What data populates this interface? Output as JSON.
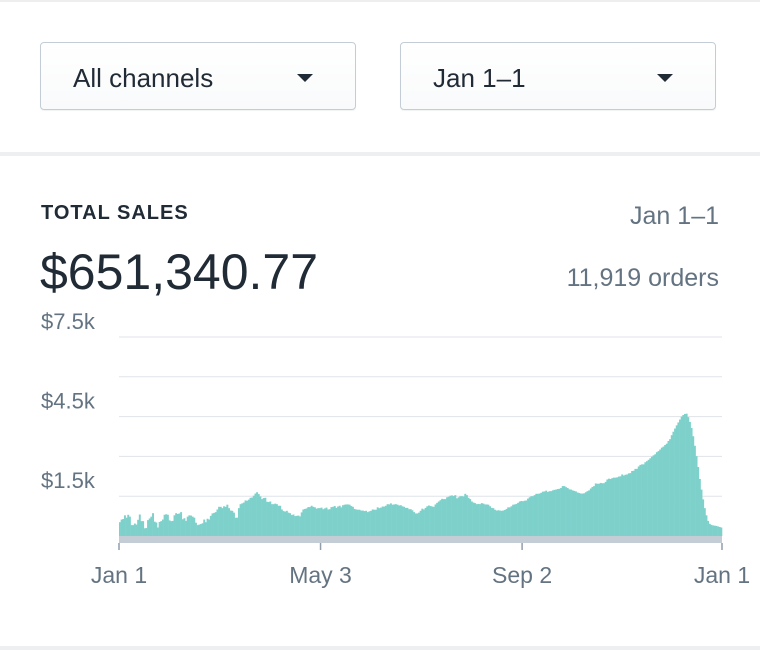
{
  "filters": {
    "channel": {
      "value": "All channels",
      "icon": "caret-down-icon"
    },
    "date_range": {
      "value": "Jan 1–1",
      "icon": "caret-down-icon"
    }
  },
  "sales_card": {
    "title": "TOTAL SALES",
    "range": "Jan 1–1",
    "total": "$651,340.77",
    "orders": "11,919 orders"
  },
  "colors": {
    "bar": "#7ed1cb",
    "grid": "#dfe3e8",
    "axis_text": "#637381",
    "baseline": "#c4cdd5"
  },
  "chart_data": {
    "type": "bar",
    "title": "",
    "xlabel": "",
    "ylabel": "",
    "ylim": [
      0,
      7500
    ],
    "yticks": [
      "$1.5k",
      "$4.5k",
      "$7.5k"
    ],
    "ytick_values": [
      1500,
      4500,
      7500
    ],
    "xticks": [
      "Jan 1",
      "May 3",
      "Sep 2",
      "Jan 1"
    ],
    "xtick_index": [
      0,
      122,
      244,
      365
    ],
    "grid": true,
    "series": [
      {
        "values": [
          520,
          620,
          640,
          780,
          690,
          800,
          730,
          410,
          410,
          470,
          430,
          610,
          810,
          560,
          560,
          290,
          300,
          600,
          660,
          730,
          860,
          540,
          510,
          320,
          530,
          560,
          620,
          800,
          820,
          800,
          590,
          560,
          570,
          780,
          860,
          830,
          850,
          900,
          630,
          670,
          570,
          730,
          780,
          770,
          730,
          690,
          500,
          410,
          430,
          450,
          480,
          620,
          520,
          650,
          620,
          760,
          850,
          870,
          900,
          1000,
          1100,
          1100,
          1050,
          1120,
          1100,
          1180,
          1050,
          960,
          950,
          880,
          690,
          690,
          1050,
          1200,
          1230,
          1260,
          1340,
          1330,
          1370,
          1440,
          1450,
          1520,
          1600,
          1650,
          1580,
          1490,
          1390,
          1430,
          1440,
          1290,
          1280,
          1300,
          1200,
          1200,
          1220,
          1200,
          1140,
          1140,
          1000,
          940,
          920,
          950,
          880,
          860,
          790,
          810,
          750,
          760,
          770,
          740,
          890,
          1000,
          1020,
          1040,
          1090,
          1090,
          1140,
          1100,
          1080,
          1030,
          1050,
          1050,
          1070,
          1010,
          1040,
          1070,
          1000,
          1010,
          1090,
          1100,
          1130,
          1060,
          1110,
          1140,
          1080,
          1160,
          1180,
          1190,
          1190,
          1180,
          1130,
          1100,
          1020,
          1000,
          990,
          990,
          960,
          960,
          940,
          950,
          900,
          930,
          950,
          1000,
          990,
          990,
          1080,
          1050,
          1070,
          1110,
          1110,
          1140,
          1200,
          1190,
          1230,
          1180,
          1190,
          1200,
          1180,
          1150,
          1160,
          1120,
          1100,
          1060,
          1060,
          1010,
          1010,
          970,
          900,
          850,
          850,
          880,
          950,
          1030,
          1000,
          1060,
          1120,
          1150,
          1130,
          1110,
          1100,
          1190,
          1250,
          1300,
          1350,
          1400,
          1390,
          1390,
          1460,
          1480,
          1520,
          1530,
          1510,
          1540,
          1420,
          1460,
          1500,
          1500,
          1490,
          1590,
          1540,
          1440,
          1390,
          1300,
          1260,
          1240,
          1200,
          1210,
          1200,
          1240,
          1220,
          1190,
          1190,
          1180,
          1120,
          1060,
          1050,
          990,
          960,
          970,
          960,
          950,
          960,
          980,
          1020,
          1080,
          1080,
          1120,
          1180,
          1190,
          1210,
          1250,
          1300,
          1320,
          1310,
          1330,
          1340,
          1410,
          1460,
          1500,
          1500,
          1540,
          1590,
          1590,
          1600,
          1630,
          1670,
          1680,
          1710,
          1660,
          1690,
          1690,
          1720,
          1740,
          1750,
          1770,
          1780,
          1810,
          1880,
          1880,
          1840,
          1810,
          1760,
          1750,
          1720,
          1700,
          1680,
          1640,
          1620,
          1600,
          1600,
          1610,
          1650,
          1690,
          1720,
          1790,
          1850,
          1880,
          1980,
          1970,
          1970,
          2000,
          1990,
          1990,
          2040,
          2130,
          2160,
          2150,
          2180,
          2200,
          2200,
          2210,
          2240,
          2250,
          2320,
          2280,
          2310,
          2320,
          2360,
          2370,
          2450,
          2460,
          2530,
          2530,
          2620,
          2680,
          2700,
          2700,
          2780,
          2820,
          2870,
          2930,
          2990,
          3040,
          3080,
          3160,
          3200,
          3260,
          3330,
          3370,
          3430,
          3480,
          3580,
          3650,
          3800,
          3930,
          4050,
          4170,
          4280,
          4390,
          4500,
          4560,
          4600,
          4610,
          4480,
          4300,
          4070,
          3760,
          3400,
          3010,
          2600,
          2150,
          1750,
          1380,
          1050,
          780,
          570,
          460,
          420,
          400,
          390,
          380,
          360,
          340,
          320
        ]
      }
    ]
  }
}
